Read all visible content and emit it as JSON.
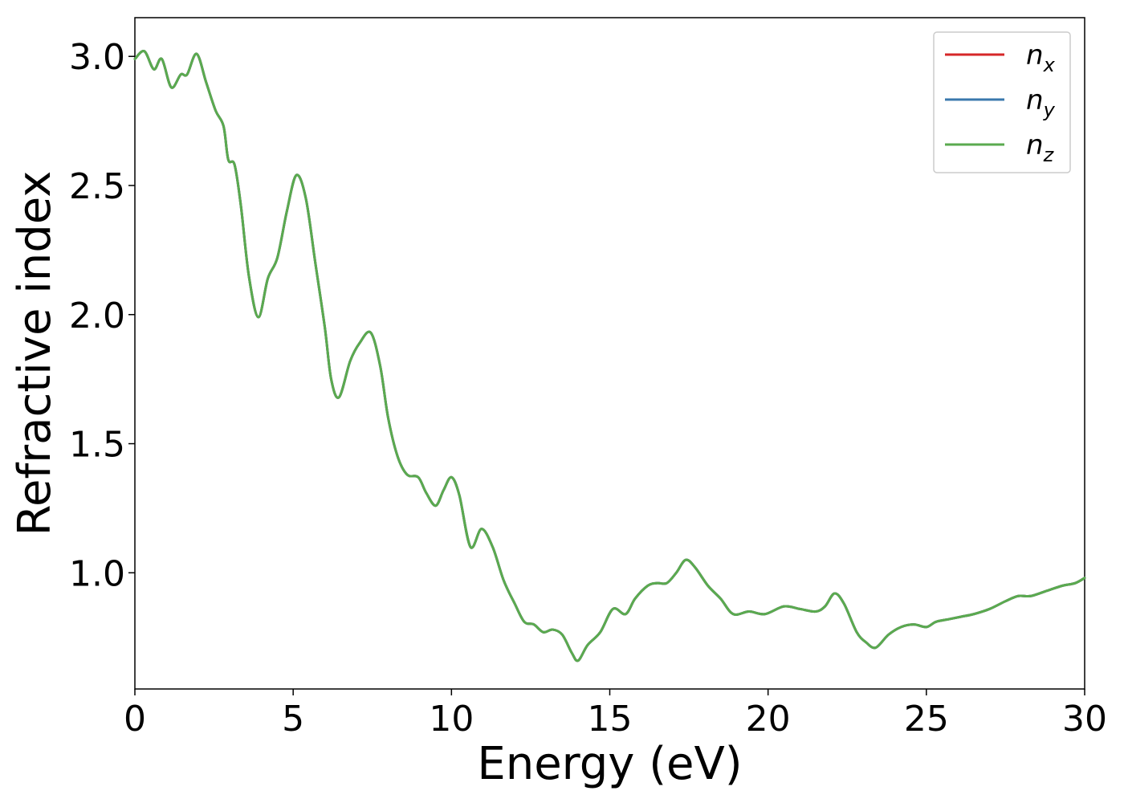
{
  "chart_data": {
    "type": "line",
    "title": "",
    "xlabel": "Energy (eV)",
    "ylabel": "Refractive index",
    "xlim": [
      0,
      30
    ],
    "ylim": [
      0.55,
      3.15
    ],
    "xticks": [
      0,
      5,
      10,
      15,
      20,
      25,
      30
    ],
    "xtick_labels": [
      "0",
      "5",
      "10",
      "15",
      "20",
      "25",
      "30"
    ],
    "yticks": [
      1.0,
      1.5,
      2.0,
      2.5,
      3.0
    ],
    "ytick_labels": [
      "1.0",
      "1.5",
      "2.0",
      "2.5",
      "3.0"
    ],
    "grid": false,
    "legend_position": "top-right",
    "x": [
      0,
      0.3,
      0.6,
      0.85,
      1.15,
      1.45,
      1.65,
      1.95,
      2.25,
      2.55,
      2.8,
      2.95,
      3.15,
      3.35,
      3.6,
      3.9,
      4.2,
      4.5,
      4.8,
      5.1,
      5.4,
      5.7,
      6.0,
      6.2,
      6.45,
      6.8,
      7.1,
      7.45,
      7.75,
      8.0,
      8.3,
      8.6,
      8.95,
      9.2,
      9.5,
      9.75,
      10.0,
      10.25,
      10.6,
      10.95,
      11.3,
      11.65,
      12.0,
      12.3,
      12.6,
      12.9,
      13.2,
      13.5,
      13.8,
      14.0,
      14.3,
      14.7,
      15.1,
      15.5,
      15.8,
      16.2,
      16.5,
      16.8,
      17.1,
      17.4,
      17.7,
      18.1,
      18.5,
      18.9,
      19.4,
      19.9,
      20.5,
      21.0,
      21.5,
      21.8,
      22.1,
      22.4,
      22.8,
      23.1,
      23.4,
      23.8,
      24.2,
      24.6,
      25.0,
      25.3,
      25.7,
      26.1,
      26.5,
      27.0,
      27.5,
      27.9,
      28.3,
      28.8,
      29.3,
      29.7,
      30.0
    ],
    "series": [
      {
        "name": "n_x",
        "label_base": "n",
        "label_sub": "x",
        "color": "#d62728",
        "values": [
          2.99,
          3.02,
          2.95,
          2.99,
          2.88,
          2.93,
          2.93,
          3.01,
          2.9,
          2.79,
          2.73,
          2.6,
          2.58,
          2.42,
          2.15,
          1.99,
          2.14,
          2.22,
          2.4,
          2.54,
          2.45,
          2.2,
          1.95,
          1.75,
          1.68,
          1.82,
          1.89,
          1.93,
          1.8,
          1.6,
          1.45,
          1.38,
          1.37,
          1.31,
          1.26,
          1.32,
          1.37,
          1.3,
          1.1,
          1.17,
          1.1,
          0.97,
          0.88,
          0.81,
          0.8,
          0.77,
          0.78,
          0.76,
          0.69,
          0.66,
          0.72,
          0.77,
          0.86,
          0.84,
          0.9,
          0.95,
          0.96,
          0.96,
          1.0,
          1.05,
          1.02,
          0.95,
          0.9,
          0.84,
          0.85,
          0.84,
          0.87,
          0.86,
          0.85,
          0.87,
          0.92,
          0.88,
          0.77,
          0.73,
          0.71,
          0.76,
          0.79,
          0.8,
          0.79,
          0.81,
          0.82,
          0.83,
          0.84,
          0.86,
          0.89,
          0.91,
          0.91,
          0.93,
          0.95,
          0.96,
          0.98
        ]
      },
      {
        "name": "n_y",
        "label_base": "n",
        "label_sub": "y",
        "color": "#3a78ac",
        "values": [
          2.99,
          3.02,
          2.95,
          2.99,
          2.88,
          2.93,
          2.93,
          3.01,
          2.9,
          2.79,
          2.73,
          2.6,
          2.58,
          2.42,
          2.15,
          1.99,
          2.14,
          2.22,
          2.4,
          2.54,
          2.45,
          2.2,
          1.95,
          1.75,
          1.68,
          1.82,
          1.89,
          1.93,
          1.8,
          1.6,
          1.45,
          1.38,
          1.37,
          1.31,
          1.26,
          1.32,
          1.37,
          1.3,
          1.1,
          1.17,
          1.1,
          0.97,
          0.88,
          0.81,
          0.8,
          0.77,
          0.78,
          0.76,
          0.69,
          0.66,
          0.72,
          0.77,
          0.86,
          0.84,
          0.9,
          0.95,
          0.96,
          0.96,
          1.0,
          1.05,
          1.02,
          0.95,
          0.9,
          0.84,
          0.85,
          0.84,
          0.87,
          0.86,
          0.85,
          0.87,
          0.92,
          0.88,
          0.77,
          0.73,
          0.71,
          0.76,
          0.79,
          0.8,
          0.79,
          0.81,
          0.82,
          0.83,
          0.84,
          0.86,
          0.89,
          0.91,
          0.91,
          0.93,
          0.95,
          0.96,
          0.98
        ]
      },
      {
        "name": "n_z",
        "label_base": "n",
        "label_sub": "z",
        "color": "#5aaa4f",
        "values": [
          2.99,
          3.02,
          2.95,
          2.99,
          2.88,
          2.93,
          2.93,
          3.01,
          2.9,
          2.79,
          2.73,
          2.6,
          2.58,
          2.42,
          2.15,
          1.99,
          2.14,
          2.22,
          2.4,
          2.54,
          2.45,
          2.2,
          1.95,
          1.75,
          1.68,
          1.82,
          1.89,
          1.93,
          1.8,
          1.6,
          1.45,
          1.38,
          1.37,
          1.31,
          1.26,
          1.32,
          1.37,
          1.3,
          1.1,
          1.17,
          1.1,
          0.97,
          0.88,
          0.81,
          0.8,
          0.77,
          0.78,
          0.76,
          0.69,
          0.66,
          0.72,
          0.77,
          0.86,
          0.84,
          0.9,
          0.95,
          0.96,
          0.96,
          1.0,
          1.05,
          1.02,
          0.95,
          0.9,
          0.84,
          0.85,
          0.84,
          0.87,
          0.86,
          0.85,
          0.87,
          0.92,
          0.88,
          0.77,
          0.73,
          0.71,
          0.76,
          0.79,
          0.8,
          0.79,
          0.81,
          0.82,
          0.83,
          0.84,
          0.86,
          0.89,
          0.91,
          0.91,
          0.93,
          0.95,
          0.96,
          0.98
        ]
      }
    ]
  }
}
